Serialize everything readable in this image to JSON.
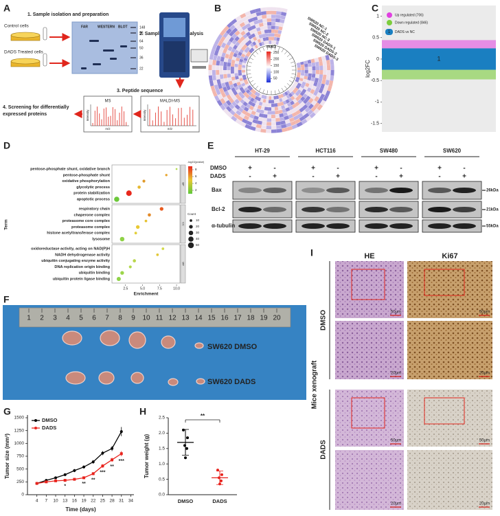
{
  "figure": {
    "panel_labels": [
      "A",
      "B",
      "C",
      "D",
      "E",
      "F",
      "G",
      "H",
      "I"
    ],
    "a": {
      "steps": [
        "1. Sample isolation and preparation",
        "2. Sample peptides analysis",
        "3. Peptide sequence",
        "4. Screening for differentially expressed proteins"
      ],
      "cells": [
        "Control cells",
        "DADS Treated cells"
      ],
      "blot_header": [
        "FAR",
        "WESTERN",
        "BLOT"
      ],
      "markers": [
        148,
        98,
        64,
        50,
        36,
        22
      ],
      "spectra": [
        "MS",
        "MALDI-MS"
      ],
      "intensity": "Intensity",
      "mz": "m/z"
    },
    "b": {
      "legend_title": "mat1",
      "legend_lim": [
        20,
        260
      ],
      "legend_ticks": [
        250,
        200,
        150,
        100,
        50
      ],
      "samples": [
        "SW620 NC-1",
        "SW620 NC-2",
        "SW620 NC-3",
        "SW620 DADS-1",
        "SW620 DADS-2",
        "SW620 DADS-3"
      ]
    },
    "c": {
      "y_label": "log2FC",
      "ylim": [
        -1.7,
        1.25
      ],
      "yticks": [
        1,
        0.5,
        0,
        -0.5,
        -1,
        -1.5
      ],
      "cluster_band": [
        -0.25,
        0.25
      ],
      "cluster": "1",
      "legend": [
        {
          "name": "Up regulated (706)",
          "color": "#e040e0"
        },
        {
          "name": "Down regulated (846)",
          "color": "#7ccd3c"
        },
        {
          "name": "DADS vs NC",
          "color": "#1a7fc1"
        }
      ]
    },
    "d": {
      "groups": [
        "BP",
        "CC",
        "MF"
      ],
      "terms": [
        "pentose-phosphate shunt, oxidative branch",
        "pentose-phosphate shunt",
        "oxidative phosphorylation",
        "glycolytic process",
        "protein stabilization",
        "apoptotic process",
        "respiratory chain",
        "chaperone complex",
        "proteasome core complex",
        "proteasome complex",
        "histone acetyltransferase complex",
        "lysosome",
        "oxidoreductase activity, acting on NAD(P)H",
        "NADH dehydrogenase activity",
        "ubiquitin conjugating enzyme activity",
        "DNA replication origin binding",
        "ubiquitin binding",
        "ubiquitin protein ligase binding"
      ],
      "enrichment": [
        10.0,
        8.5,
        5.2,
        4.5,
        3.0,
        1.2,
        7.8,
        6.0,
        5.5,
        4.3,
        4.0,
        2.0,
        8.0,
        7.2,
        3.8,
        3.2,
        2.0,
        1.5
      ],
      "count": [
        5,
        8,
        12,
        15,
        45,
        40,
        20,
        15,
        10,
        20,
        10,
        30,
        10,
        10,
        15,
        12,
        20,
        25
      ],
      "colors": [
        "#b5dd55",
        "#e8a630",
        "#e09a2a",
        "#e6b830",
        "#e8281c",
        "#6cc83a",
        "#e85a1e",
        "#e38a28",
        "#e6c232",
        "#e9c934",
        "#e2cf3a",
        "#8fd247",
        "#d2d94a",
        "#e2c838",
        "#b9d64a",
        "#b3d84c",
        "#9cd54a",
        "#8fd247"
      ],
      "xlim": [
        0.5,
        10.5
      ],
      "xticks": [
        {
          "value": 2.5,
          "label": "2.5"
        },
        {
          "value": 5,
          "label": "5.0"
        },
        {
          "value": 7.5,
          "label": "7.5"
        },
        {
          "value": 10,
          "label": "10.0"
        }
      ],
      "x_label": "Enrichment",
      "y_label": "Term",
      "color_title": "-log10(pvalue)",
      "color_lim": [
        1,
        9
      ],
      "color_ticks": [
        8,
        6,
        4,
        2
      ],
      "size_title": "Count",
      "size_ticks": [
        10,
        20,
        30,
        40,
        50
      ]
    },
    "e": {
      "cell_lines": [
        "HT-29",
        "HCT116",
        "SW480",
        "SW620"
      ],
      "treatments": [
        "DMSO",
        "DADS"
      ],
      "signs": [
        [
          "+",
          "-"
        ],
        [
          "-",
          "+"
        ]
      ],
      "proteins": [
        "Bax",
        "Bcl-2",
        "α-tubulin"
      ],
      "sizes": [
        "26kDa",
        "21kDa",
        "55kDa"
      ]
    },
    "f": {
      "ruler": [
        1,
        2,
        3,
        4,
        5,
        6,
        7,
        8,
        9,
        10,
        11,
        12,
        13,
        14,
        15,
        16,
        17,
        18,
        19,
        20
      ],
      "labels": [
        "SW620 DMSO",
        "SW620 DADS"
      ]
    },
    "g": {
      "type": "line",
      "y_label": "Tumor size (mm³)",
      "x_label": "Time (days)",
      "x": [
        4,
        7,
        10,
        13,
        16,
        19,
        22,
        25,
        28,
        31
      ],
      "xlim": [
        1,
        35
      ],
      "xticks": [
        4,
        7,
        10,
        13,
        16,
        19,
        22,
        25,
        28,
        31,
        34
      ],
      "ylim": [
        0,
        1500
      ],
      "yticks": [
        0,
        250,
        500,
        750,
        1000,
        1250,
        1500
      ],
      "series": [
        {
          "name": "DMSO",
          "color": "#000000",
          "values": [
            220,
            280,
            330,
            390,
            470,
            540,
            640,
            810,
            900,
            1230
          ],
          "errors": [
            15,
            20,
            20,
            25,
            30,
            30,
            35,
            40,
            50,
            90
          ]
        },
        {
          "name": "DADS",
          "color": "#e8221c",
          "values": [
            220,
            250,
            270,
            280,
            300,
            330,
            410,
            560,
            680,
            800
          ],
          "errors": [
            15,
            15,
            20,
            20,
            25,
            25,
            30,
            35,
            40,
            50
          ],
          "significance": [
            null,
            null,
            null,
            "*",
            null,
            "**",
            "**",
            "***",
            "**",
            "***"
          ]
        }
      ]
    },
    "h": {
      "type": "dot",
      "y_label": "Tumor weight (g)",
      "categories": [
        "DMSO",
        "DADS"
      ],
      "colors": [
        "#000000",
        "#e8221c"
      ],
      "points": [
        [
          2.1,
          1.85,
          1.6,
          1.5,
          1.2
        ],
        [
          0.8,
          0.65,
          0.55,
          0.45,
          0.35
        ]
      ],
      "mean": [
        1.7,
        0.55
      ],
      "sd": [
        0.42,
        0.22
      ],
      "ylim": [
        0,
        2.5
      ],
      "yticks": [
        {
          "value": 0,
          "label": "0.0"
        },
        {
          "value": 0.5,
          "label": "0.5"
        },
        {
          "value": 1,
          "label": "1.0"
        },
        {
          "value": 1.5,
          "label": "1.5"
        },
        {
          "value": 2,
          "label": "2.0"
        },
        {
          "value": 2.5,
          "label": "2.5"
        }
      ],
      "significance": "**"
    },
    "i": {
      "columns": [
        "HE",
        "Ki67"
      ],
      "groups": [
        "DMSO",
        "DADS"
      ],
      "side_label": "Mice xenograft",
      "scale_bars": [
        "50μm",
        "50μm",
        "20μm",
        "20μm",
        "50μm",
        "50μm",
        "20μm",
        "20μm"
      ]
    }
  }
}
